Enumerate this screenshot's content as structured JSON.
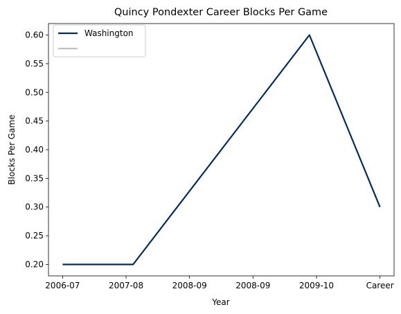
{
  "chart_data": {
    "type": "line",
    "title": "Quincy Pondexter Career Blocks Per Game",
    "xlabel": "Year",
    "ylabel": "Blocks Per Game",
    "x_ticks": [
      "2006-07",
      "2007-08",
      "2008-09",
      "2008-09",
      "2009-10",
      "Career"
    ],
    "y_ticks": [
      "0.20",
      "0.25",
      "0.30",
      "0.35",
      "0.40",
      "0.45",
      "0.50",
      "0.55",
      "0.60"
    ],
    "ylim": [
      0.18,
      0.62
    ],
    "grid": false,
    "legend_position": "upper-left",
    "series": [
      {
        "name": "Washington",
        "color": "#002b5c",
        "points": [
          {
            "x": 0,
            "y": 0.2
          },
          {
            "x": 1,
            "y": 0.2
          },
          {
            "x": 3.5,
            "y": 0.6
          },
          {
            "x": 4.5,
            "y": 0.3
          }
        ]
      },
      {
        "name": "",
        "color": "#c0c0c0",
        "points": []
      }
    ]
  }
}
